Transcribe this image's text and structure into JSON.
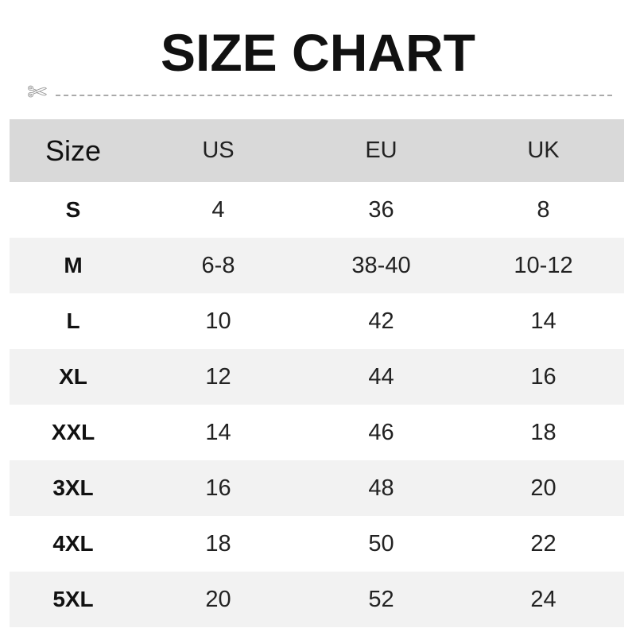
{
  "title": "SIZE CHART",
  "icons": {
    "cut": "scissors-icon"
  },
  "colors": {
    "header_bg": "#d9d9d9",
    "alt_row_bg": "#f2f2f2",
    "dash": "#aaaaaa"
  },
  "table": {
    "headers": [
      "Size",
      "US",
      "EU",
      "UK"
    ],
    "rows": [
      [
        "S",
        "4",
        "36",
        "8"
      ],
      [
        "M",
        "6-8",
        "38-40",
        "10-12"
      ],
      [
        "L",
        "10",
        "42",
        "14"
      ],
      [
        "XL",
        "12",
        "44",
        "16"
      ],
      [
        "XXL",
        "14",
        "46",
        "18"
      ],
      [
        "3XL",
        "16",
        "48",
        "20"
      ],
      [
        "4XL",
        "18",
        "50",
        "22"
      ],
      [
        "5XL",
        "20",
        "52",
        "24"
      ]
    ]
  }
}
